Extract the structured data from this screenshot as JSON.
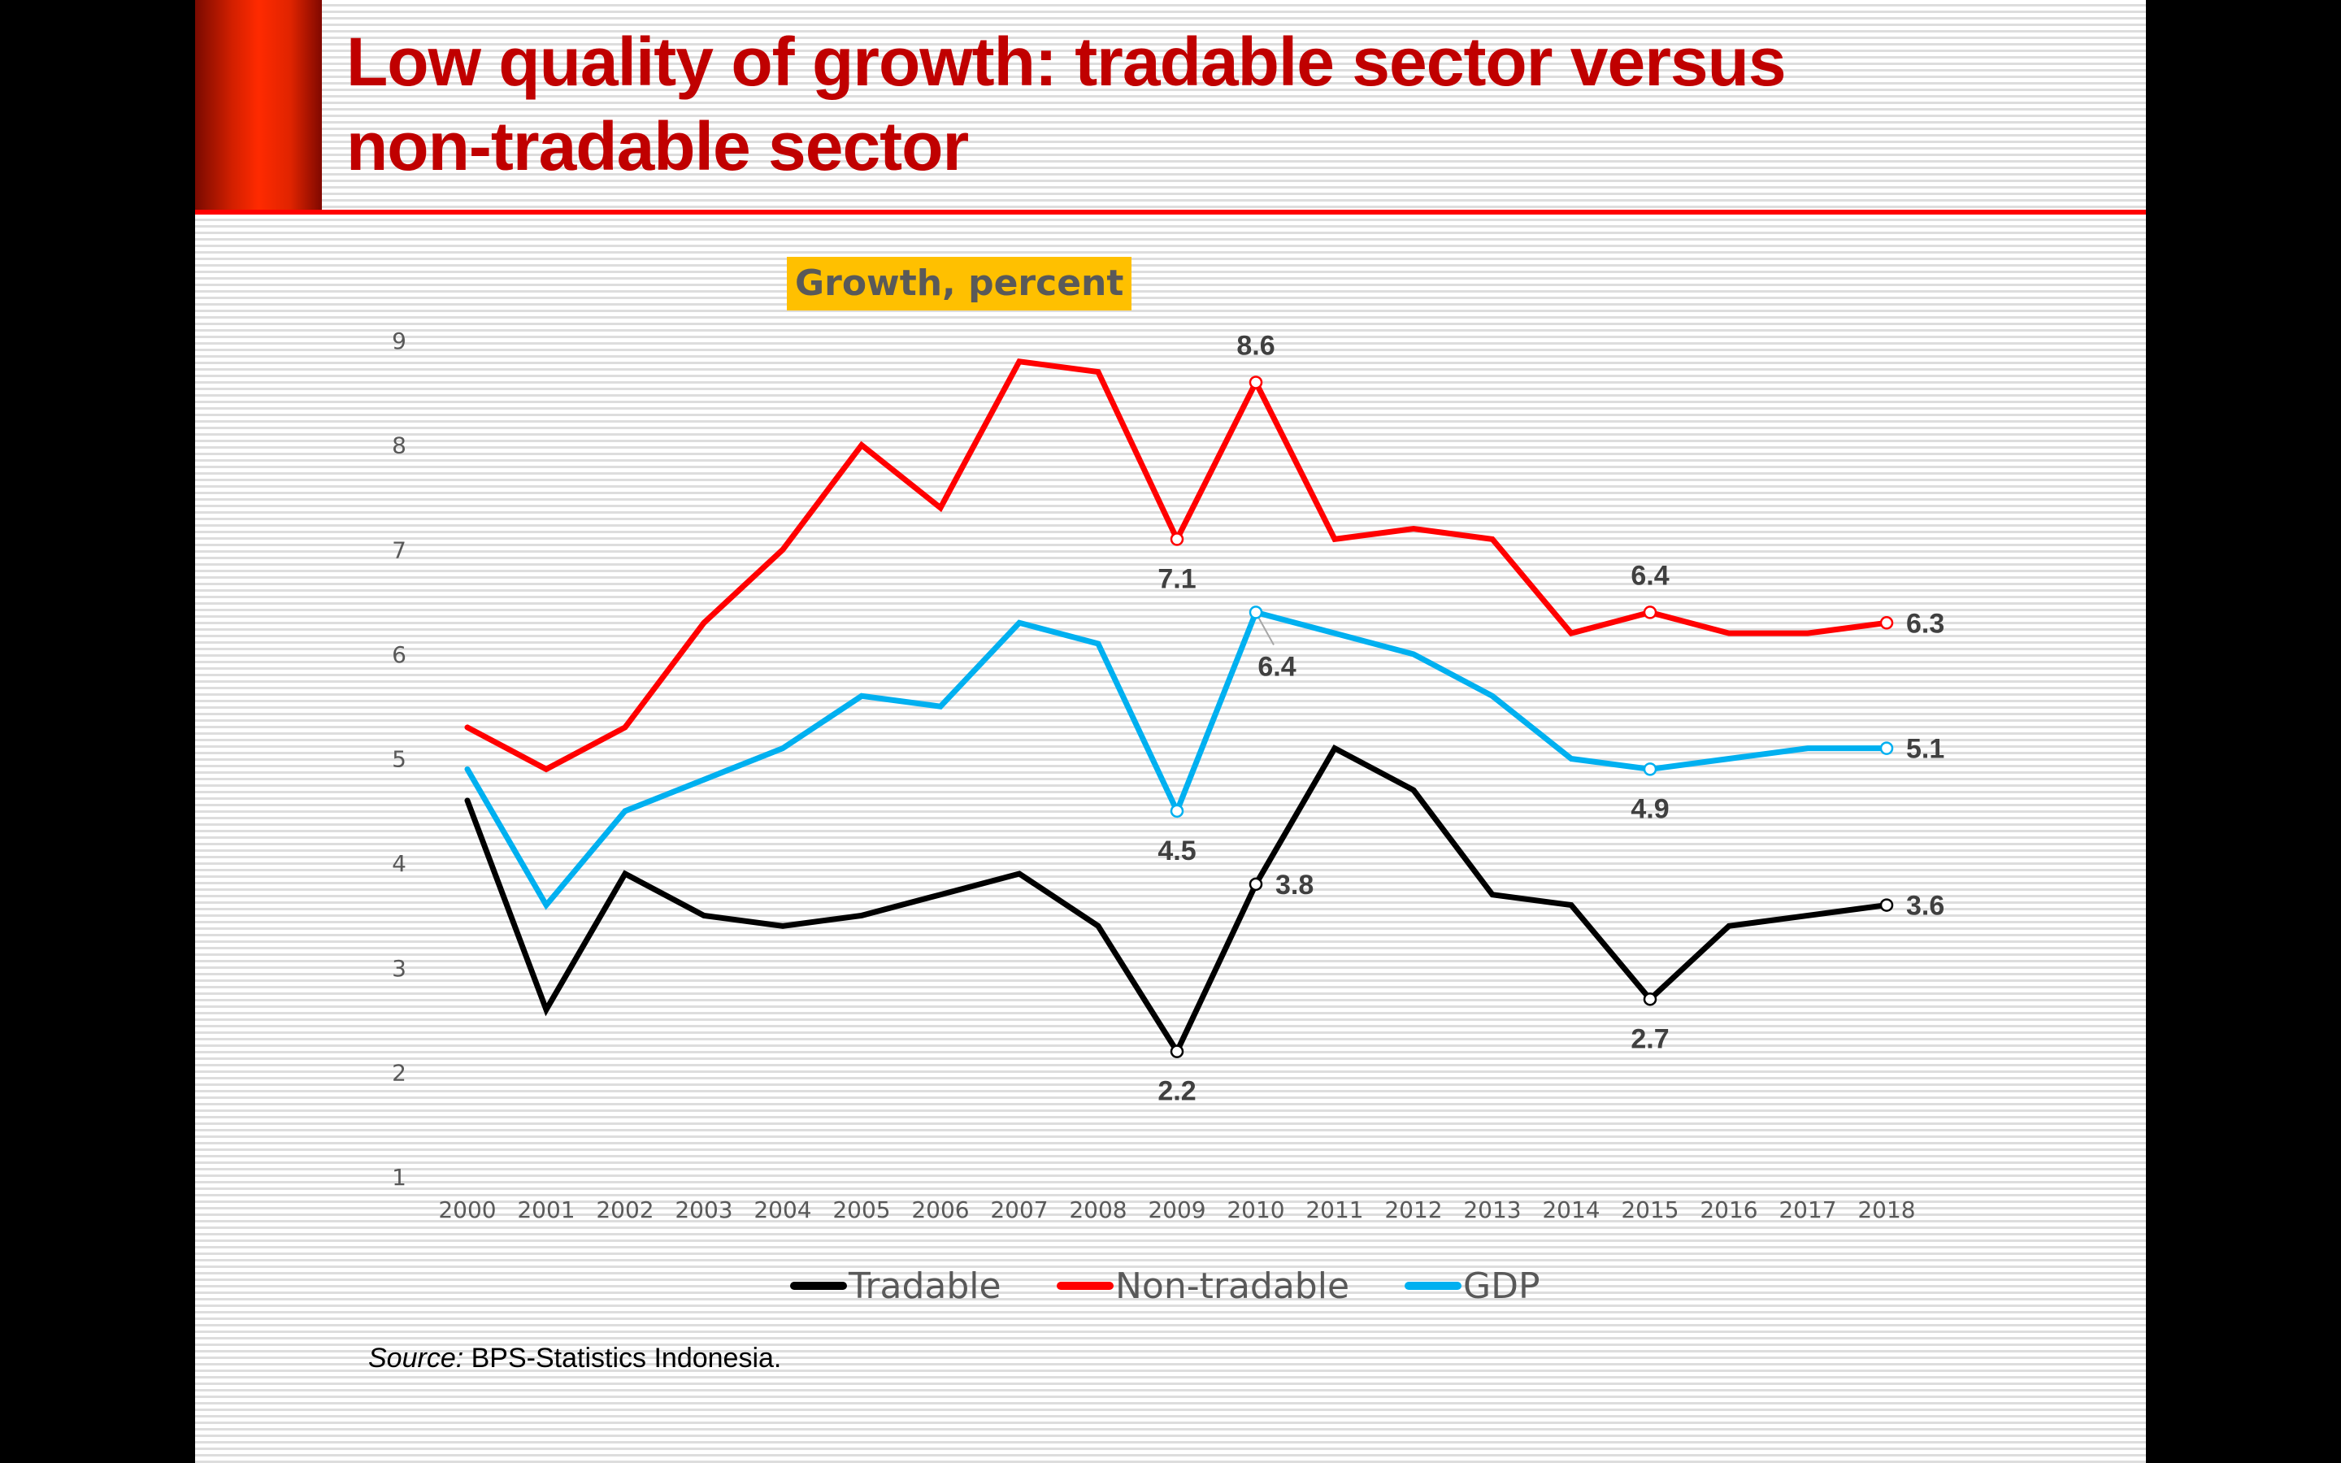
{
  "slide": {
    "title": "Low quality of growth: tradable sector versus non-tradable sector",
    "title_line1": "Low quality of growth: tradable sector versus",
    "title_line2": "non-tradable sector",
    "source_label": "Source:",
    "source_text": " BPS-Statistics Indonesia."
  },
  "colors": {
    "title": "#C00000",
    "accent": "#FF0000",
    "chart_title_bg": "#FFC000",
    "tradable": "#000000",
    "non_tradable": "#FF0000",
    "gdp": "#00B0F0"
  },
  "chart_data": {
    "type": "line",
    "title": "Growth, percent",
    "xlabel": "",
    "ylabel": "",
    "x": [
      2000,
      2001,
      2002,
      2003,
      2004,
      2005,
      2006,
      2007,
      2008,
      2009,
      2010,
      2011,
      2012,
      2013,
      2014,
      2015,
      2016,
      2017,
      2018
    ],
    "x_tick_labels": [
      "2000",
      "2001",
      "2002",
      "2003",
      "2004",
      "2005",
      "2006",
      "2007",
      "2008",
      "2009",
      "2010",
      "2011",
      "2012",
      "2013",
      "2014",
      "2015",
      "2016",
      "2017",
      "2018"
    ],
    "ylim": [
      1,
      9
    ],
    "y_ticks": [
      1,
      2,
      3,
      4,
      5,
      6,
      7,
      8,
      9
    ],
    "grid": false,
    "legend_position": "bottom",
    "series": [
      {
        "name": "Tradable",
        "color": "#000000",
        "values": [
          4.6,
          2.6,
          3.9,
          3.5,
          3.4,
          3.5,
          3.7,
          3.9,
          3.4,
          2.2,
          3.8,
          5.1,
          4.7,
          3.7,
          3.6,
          2.7,
          3.4,
          3.5,
          3.6
        ],
        "labels": [
          {
            "year": 2009,
            "text": "2.2",
            "pos": "below"
          },
          {
            "year": 2010,
            "text": "3.8",
            "pos": "right"
          },
          {
            "year": 2015,
            "text": "2.7",
            "pos": "below"
          },
          {
            "year": 2018,
            "text": "3.6",
            "pos": "right"
          }
        ]
      },
      {
        "name": "Non-tradable",
        "color": "#FF0000",
        "values": [
          5.3,
          4.9,
          5.3,
          6.3,
          7.0,
          8.0,
          7.4,
          8.8,
          8.7,
          7.1,
          8.6,
          7.1,
          7.2,
          7.1,
          6.2,
          6.4,
          6.2,
          6.2,
          6.3
        ],
        "labels": [
          {
            "year": 2009,
            "text": "7.1",
            "pos": "below"
          },
          {
            "year": 2010,
            "text": "8.6",
            "pos": "above"
          },
          {
            "year": 2015,
            "text": "6.4",
            "pos": "above"
          },
          {
            "year": 2018,
            "text": "6.3",
            "pos": "right"
          }
        ]
      },
      {
        "name": "GDP",
        "color": "#00B0F0",
        "values": [
          4.9,
          3.6,
          4.5,
          4.8,
          5.1,
          5.6,
          5.5,
          6.3,
          6.1,
          4.5,
          6.4,
          6.2,
          6.0,
          5.6,
          5.0,
          4.9,
          5.0,
          5.1,
          5.1
        ],
        "labels": [
          {
            "year": 2009,
            "text": "4.5",
            "pos": "below"
          },
          {
            "year": 2010,
            "text": "6.4",
            "pos": "below-right"
          },
          {
            "year": 2015,
            "text": "4.9",
            "pos": "below"
          },
          {
            "year": 2018,
            "text": "5.1",
            "pos": "right"
          }
        ]
      }
    ]
  }
}
